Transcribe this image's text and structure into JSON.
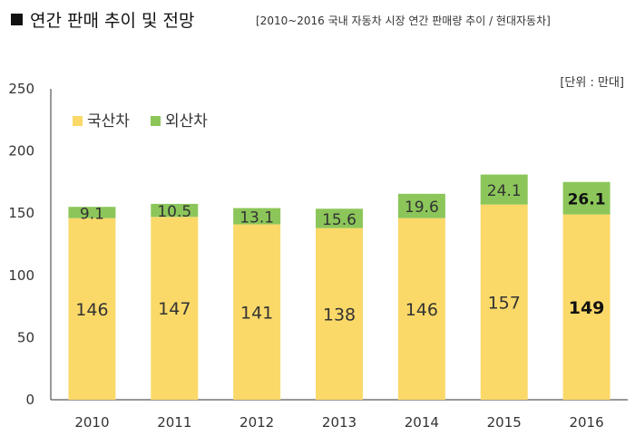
{
  "title": "연간 판매 추이 및 전망",
  "subtitle": "[2010~2016 국내 자동차 시장 연간 판매량 추이 / 현대자동차]",
  "unit": "[단위 : 만대]",
  "colors": {
    "domestic": "#fbd969",
    "imported": "#8cc65a"
  },
  "chart_data": {
    "type": "bar",
    "stacked": true,
    "categories": [
      "2010",
      "2011",
      "2012",
      "2013",
      "2014",
      "2015",
      "2016"
    ],
    "series": [
      {
        "name": "국산차",
        "values": [
          146,
          147,
          141,
          138,
          146,
          157,
          149
        ],
        "labels": [
          "146",
          "147",
          "141",
          "138",
          "146",
          "157",
          "149"
        ]
      },
      {
        "name": "외산차",
        "values": [
          9.1,
          10.5,
          13.1,
          15.6,
          19.6,
          24.1,
          26.1
        ],
        "labels": [
          "9.1",
          "10.5",
          "13.1",
          "15.6",
          "19.6",
          "24.1",
          "26.1"
        ]
      }
    ],
    "yticks": [
      "0",
      "50",
      "100",
      "150",
      "200",
      "250"
    ],
    "ylim": [
      0,
      250
    ],
    "highlighted_category": "2016",
    "legend_placement": "top-left",
    "grid": false
  }
}
